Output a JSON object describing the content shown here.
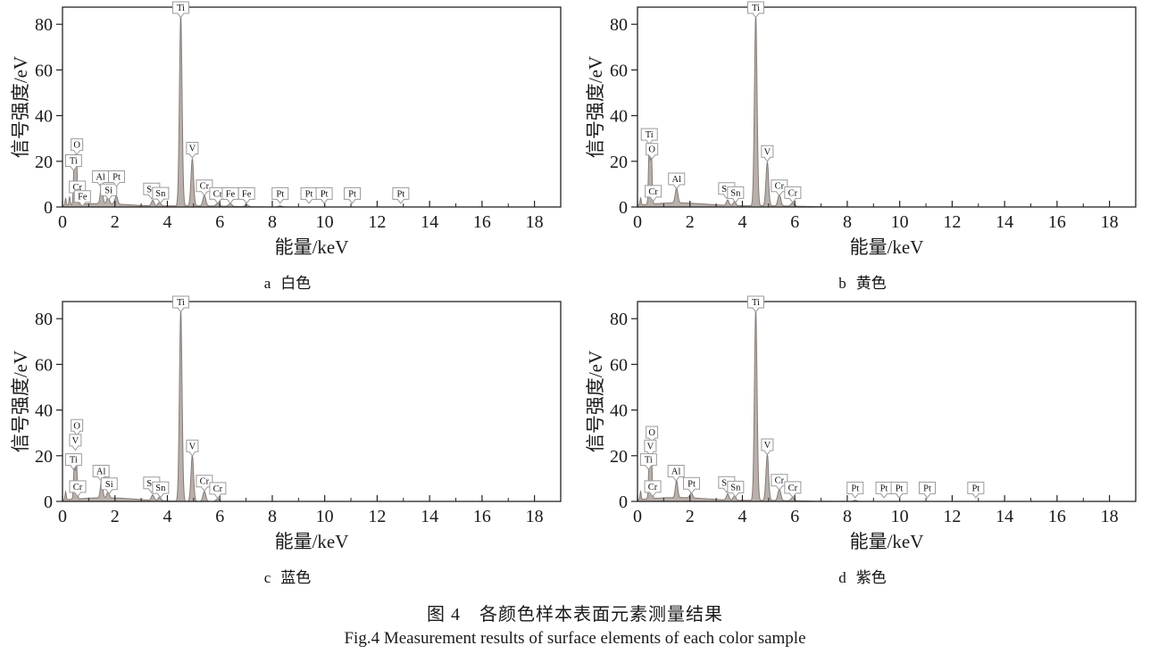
{
  "figure": {
    "caption_zh": "图 4　各颜色样本表面元素测量结果",
    "caption_en": "Fig.4 Measurement results of surface elements of each color sample"
  },
  "colors": {
    "spectrum_fill": "#b9b0ab",
    "spectrum_stroke": "#857b75",
    "axis": "#222222",
    "label_box_border": "#9a9a9a",
    "label_text": "#111111"
  },
  "chart_data": {
    "type": "area",
    "shared_axes": {
      "xlabel": "能量/keV",
      "ylabel": "信号强度/eV",
      "xlim": [
        0,
        19
      ],
      "ylim": [
        0,
        87.5
      ],
      "xticks": [
        0,
        2,
        4,
        6,
        8,
        10,
        12,
        14,
        16,
        18
      ],
      "xminor": [
        1,
        3,
        5,
        7,
        9,
        11,
        13,
        15,
        17,
        19
      ],
      "yticks": [
        0,
        20,
        40,
        60,
        80
      ],
      "grid": false
    },
    "charts": [
      {
        "id": "a",
        "caption_letter": "a",
        "caption_text": "白色",
        "peaks": [
          {
            "x": 0.12,
            "h": 3.0,
            "s": 0.022
          },
          {
            "x": 0.27,
            "h": 3.5,
            "s": 0.022
          },
          {
            "x": 0.45,
            "h": 19,
            "s": 0.03
          },
          {
            "x": 0.53,
            "h": 23,
            "s": 0.03
          },
          {
            "x": 1.49,
            "h": 8.5,
            "s": 0.045
          },
          {
            "x": 1.74,
            "h": 3.2,
            "s": 0.045
          },
          {
            "x": 2.05,
            "h": 3.5,
            "s": 0.05
          },
          {
            "x": 3.44,
            "h": 2.4,
            "s": 0.05
          },
          {
            "x": 3.7,
            "h": 1.7,
            "s": 0.05
          },
          {
            "x": 4.51,
            "h": 84,
            "s": 0.05
          },
          {
            "x": 4.95,
            "h": 20.5,
            "s": 0.05
          },
          {
            "x": 5.41,
            "h": 4.6,
            "s": 0.055
          },
          {
            "x": 5.92,
            "h": 1.3,
            "s": 0.06
          },
          {
            "x": 6.4,
            "h": 1.2,
            "s": 0.06
          },
          {
            "x": 7.02,
            "h": 0.9,
            "s": 0.06
          },
          {
            "x": 8.3,
            "h": 0.5,
            "s": 0.06
          }
        ],
        "bg": [
          {
            "x": 1.4,
            "h": 1.5,
            "s": 1.1
          },
          {
            "x": 5.0,
            "h": 0.5,
            "s": 1.3
          }
        ],
        "annotations": [
          {
            "el": "O",
            "x": 0.55,
            "y": 23
          },
          {
            "el": "Ti",
            "x": 0.42,
            "y": 16
          },
          {
            "el": "Cr",
            "x": 0.57,
            "y": 4.5
          },
          {
            "el": "Fe",
            "x": 0.76,
            "y": 0.3
          },
          {
            "el": "Al",
            "x": 1.45,
            "y": 9
          },
          {
            "el": "Si",
            "x": 1.76,
            "y": 3.2
          },
          {
            "el": "Pt",
            "x": 2.06,
            "y": 9
          },
          {
            "el": "Sn",
            "x": 3.4,
            "y": 3.6
          },
          {
            "el": "Sn",
            "x": 3.74,
            "y": 1.7
          },
          {
            "el": "Ti",
            "x": 4.51,
            "y": 83
          },
          {
            "el": "V",
            "x": 4.95,
            "y": 21.5
          },
          {
            "el": "Cr",
            "x": 5.41,
            "y": 5
          },
          {
            "el": "Cr",
            "x": 5.92,
            "y": 1.6
          },
          {
            "el": "Fe",
            "x": 6.4,
            "y": 1.6
          },
          {
            "el": "Fe",
            "x": 7.02,
            "y": 1.6
          },
          {
            "el": "Pt",
            "x": 8.3,
            "y": 1.6
          },
          {
            "el": "Pt",
            "x": 9.4,
            "y": 1.6
          },
          {
            "el": "Pt",
            "x": 9.98,
            "y": 1.6
          },
          {
            "el": "Pt",
            "x": 11.05,
            "y": 1.6
          },
          {
            "el": "Pt",
            "x": 12.9,
            "y": 1.6
          }
        ]
      },
      {
        "id": "b",
        "caption_letter": "b",
        "caption_text": "黄色",
        "peaks": [
          {
            "x": 0.12,
            "h": 3.0,
            "s": 0.022
          },
          {
            "x": 0.45,
            "h": 26,
            "s": 0.03
          },
          {
            "x": 0.53,
            "h": 21,
            "s": 0.03
          },
          {
            "x": 1.49,
            "h": 6.5,
            "s": 0.05
          },
          {
            "x": 3.44,
            "h": 2.4,
            "s": 0.05
          },
          {
            "x": 3.7,
            "h": 1.7,
            "s": 0.05
          },
          {
            "x": 4.51,
            "h": 84,
            "s": 0.05
          },
          {
            "x": 4.95,
            "h": 19,
            "s": 0.05
          },
          {
            "x": 5.41,
            "h": 5.0,
            "s": 0.055
          },
          {
            "x": 5.92,
            "h": 1.5,
            "s": 0.06
          }
        ],
        "bg": [
          {
            "x": 1.5,
            "h": 1.8,
            "s": 1.2
          },
          {
            "x": 5.0,
            "h": 0.5,
            "s": 1.2
          }
        ],
        "annotations": [
          {
            "el": "Ti",
            "x": 0.45,
            "y": 27.5
          },
          {
            "el": "O",
            "x": 0.55,
            "y": 21
          },
          {
            "el": "Cr",
            "x": 0.6,
            "y": 2.6
          },
          {
            "el": "Al",
            "x": 1.49,
            "y": 8
          },
          {
            "el": "Sn",
            "x": 3.4,
            "y": 3.8
          },
          {
            "el": "Sn",
            "x": 3.74,
            "y": 2.0
          },
          {
            "el": "Ti",
            "x": 4.51,
            "y": 83
          },
          {
            "el": "V",
            "x": 4.95,
            "y": 20
          },
          {
            "el": "Cr",
            "x": 5.41,
            "y": 5
          },
          {
            "el": "Cr",
            "x": 5.92,
            "y": 2.0
          }
        ]
      },
      {
        "id": "c",
        "caption_letter": "c",
        "caption_text": "蓝色",
        "peaks": [
          {
            "x": 0.12,
            "h": 3.5,
            "s": 0.022
          },
          {
            "x": 0.45,
            "h": 14,
            "s": 0.03
          },
          {
            "x": 0.53,
            "h": 16.5,
            "s": 0.03
          },
          {
            "x": 1.49,
            "h": 7.5,
            "s": 0.045
          },
          {
            "x": 1.74,
            "h": 2.8,
            "s": 0.045
          },
          {
            "x": 3.44,
            "h": 2.4,
            "s": 0.05
          },
          {
            "x": 3.7,
            "h": 1.6,
            "s": 0.05
          },
          {
            "x": 4.51,
            "h": 84,
            "s": 0.05
          },
          {
            "x": 4.95,
            "h": 20,
            "s": 0.05
          },
          {
            "x": 5.41,
            "h": 4.4,
            "s": 0.055
          },
          {
            "x": 5.92,
            "h": 1.2,
            "s": 0.06
          }
        ],
        "bg": [
          {
            "x": 1.6,
            "h": 1.6,
            "s": 1.2
          }
        ],
        "annotations": [
          {
            "el": "O",
            "x": 0.55,
            "y": 29
          },
          {
            "el": "V",
            "x": 0.49,
            "y": 22.5
          },
          {
            "el": "Ti",
            "x": 0.42,
            "y": 14
          },
          {
            "el": "Cr",
            "x": 0.58,
            "y": 2.2
          },
          {
            "el": "Al",
            "x": 1.47,
            "y": 9
          },
          {
            "el": "Si",
            "x": 1.78,
            "y": 3.4
          },
          {
            "el": "Sn",
            "x": 3.4,
            "y": 3.8
          },
          {
            "el": "Sn",
            "x": 3.74,
            "y": 1.7
          },
          {
            "el": "Ti",
            "x": 4.51,
            "y": 83
          },
          {
            "el": "V",
            "x": 4.95,
            "y": 20
          },
          {
            "el": "Cr",
            "x": 5.41,
            "y": 4.6
          },
          {
            "el": "Cr",
            "x": 5.92,
            "y": 1.4
          }
        ]
      },
      {
        "id": "d",
        "caption_letter": "d",
        "caption_text": "紫色",
        "peaks": [
          {
            "x": 0.12,
            "h": 3.5,
            "s": 0.022
          },
          {
            "x": 0.45,
            "h": 16,
            "s": 0.03
          },
          {
            "x": 0.53,
            "h": 19.5,
            "s": 0.03
          },
          {
            "x": 1.49,
            "h": 7.5,
            "s": 0.045
          },
          {
            "x": 2.05,
            "h": 2.2,
            "s": 0.05
          },
          {
            "x": 3.44,
            "h": 2.6,
            "s": 0.05
          },
          {
            "x": 3.7,
            "h": 1.9,
            "s": 0.05
          },
          {
            "x": 4.51,
            "h": 84,
            "s": 0.05
          },
          {
            "x": 4.95,
            "h": 20,
            "s": 0.05
          },
          {
            "x": 5.41,
            "h": 5.0,
            "s": 0.055
          },
          {
            "x": 5.92,
            "h": 1.4,
            "s": 0.06
          },
          {
            "x": 8.3,
            "h": 0.5,
            "s": 0.06
          }
        ],
        "bg": [
          {
            "x": 1.5,
            "h": 1.7,
            "s": 1.2
          },
          {
            "x": 5.0,
            "h": 0.4,
            "s": 1.2
          }
        ],
        "annotations": [
          {
            "el": "O",
            "x": 0.55,
            "y": 26
          },
          {
            "el": "V",
            "x": 0.49,
            "y": 20
          },
          {
            "el": "Ti",
            "x": 0.42,
            "y": 14
          },
          {
            "el": "Cr",
            "x": 0.58,
            "y": 2.2
          },
          {
            "el": "Al",
            "x": 1.47,
            "y": 9
          },
          {
            "el": "Pt",
            "x": 2.06,
            "y": 3.6
          },
          {
            "el": "Sn",
            "x": 3.4,
            "y": 4.0
          },
          {
            "el": "Sn",
            "x": 3.74,
            "y": 2.0
          },
          {
            "el": "Ti",
            "x": 4.51,
            "y": 83
          },
          {
            "el": "V",
            "x": 4.95,
            "y": 20.5
          },
          {
            "el": "Cr",
            "x": 5.41,
            "y": 5
          },
          {
            "el": "Cr",
            "x": 5.92,
            "y": 1.8
          },
          {
            "el": "Pt",
            "x": 8.3,
            "y": 1.6
          },
          {
            "el": "Pt",
            "x": 9.4,
            "y": 1.6
          },
          {
            "el": "Pt",
            "x": 9.98,
            "y": 1.6
          },
          {
            "el": "Pt",
            "x": 11.05,
            "y": 1.6
          },
          {
            "el": "Pt",
            "x": 12.9,
            "y": 1.6
          }
        ]
      }
    ]
  }
}
